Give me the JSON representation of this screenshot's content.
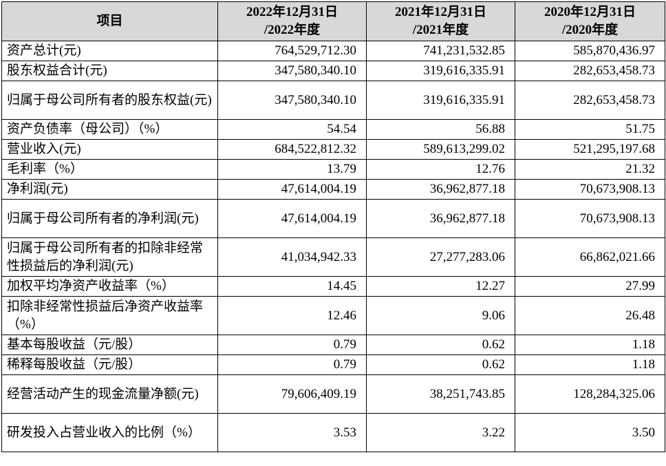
{
  "header": {
    "item": "项目",
    "col_2022": "2022年12月31日\n/2022年度",
    "col_2021": "2021年12月31日\n/2021年度",
    "col_2020": "2020年12月31日\n/2020年度"
  },
  "rows": [
    {
      "label": "资产总计(元)",
      "v2022": "764,529,712.30",
      "v2021": "741,231,532.85",
      "v2020": "585,870,436.97"
    },
    {
      "label": "股东权益合计(元)",
      "v2022": "347,580,340.10",
      "v2021": "319,616,335.91",
      "v2020": "282,653,458.73"
    },
    {
      "label": "归属于母公司所有者的股东权益(元)",
      "v2022": "347,580,340.10",
      "v2021": "319,616,335.91",
      "v2020": "282,653,458.73"
    },
    {
      "label": "资产负债率（母公司）（%）",
      "v2022": "54.54",
      "v2021": "56.88",
      "v2020": "51.75"
    },
    {
      "label": "营业收入(元)",
      "v2022": "684,522,812.32",
      "v2021": "589,613,299.02",
      "v2020": "521,295,197.68"
    },
    {
      "label": "毛利率（%）",
      "v2022": "13.79",
      "v2021": "12.76",
      "v2020": "21.32"
    },
    {
      "label": "净利润(元)",
      "v2022": "47,614,004.19",
      "v2021": "36,962,877.18",
      "v2020": "70,673,908.13"
    },
    {
      "label": "归属于母公司所有者的净利润(元)",
      "v2022": "47,614,004.19",
      "v2021": "36,962,877.18",
      "v2020": "70,673,908.13"
    },
    {
      "label": "归属于母公司所有者的扣除非经常性损益后的净利润(元)",
      "v2022": "41,034,942.33",
      "v2021": "27,277,283.06",
      "v2020": "66,862,021.66"
    },
    {
      "label": "加权平均净资产收益率（%）",
      "v2022": "14.45",
      "v2021": "12.27",
      "v2020": "27.99"
    },
    {
      "label": "扣除非经常性损益后净资产收益率（%）",
      "v2022": "12.46",
      "v2021": "9.06",
      "v2020": "26.48"
    },
    {
      "label": "基本每股收益（元/股）",
      "v2022": "0.79",
      "v2021": "0.62",
      "v2020": "1.18"
    },
    {
      "label": "稀释每股收益（元/股）",
      "v2022": "0.79",
      "v2021": "0.62",
      "v2020": "1.18"
    },
    {
      "label": "经营活动产生的现金流量净额(元)",
      "v2022": "79,606,409.19",
      "v2021": "38,251,743.85",
      "v2020": "128,284,325.06"
    },
    {
      "label": "研发投入占营业收入的比例（%）",
      "v2022": "3.53",
      "v2021": "3.22",
      "v2020": "3.50"
    }
  ]
}
